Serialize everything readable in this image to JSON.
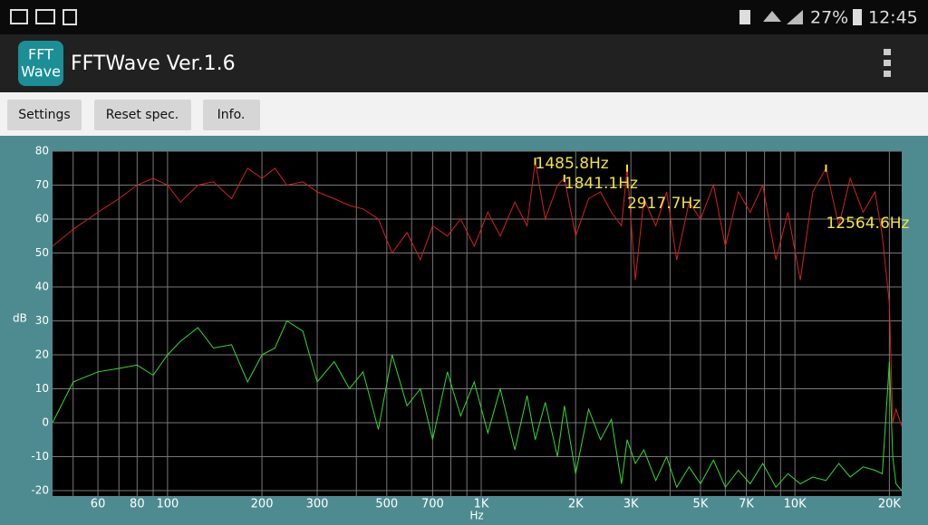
{
  "status_bar": {
    "battery": "27%",
    "time": "12:45"
  },
  "app_bar": {
    "icon_text": [
      "FFT",
      "Wave"
    ],
    "title": "FFTWave Ver.1.6"
  },
  "toolbar": {
    "buttons": [
      "Settings",
      "Reset spec.",
      "Info."
    ]
  },
  "chart_data": {
    "type": "line",
    "log_x": true,
    "grid": true,
    "ylabel": "dB",
    "xlabel": "Hz",
    "xlim": [
      43,
      21900
    ],
    "ylim": [
      -20,
      80
    ],
    "yticks": [
      -20,
      -10,
      0,
      10,
      20,
      30,
      40,
      50,
      60,
      70,
      80
    ],
    "xticks": [
      60,
      80,
      100,
      200,
      300,
      500,
      700,
      {
        "value": 1000,
        "label": "1K"
      },
      {
        "value": 2000,
        "label": "2K"
      },
      {
        "value": 3000,
        "label": "3K"
      },
      {
        "value": 5000,
        "label": "5K"
      },
      {
        "value": 7000,
        "label": "7K"
      },
      {
        "value": 10000,
        "label": "10K"
      },
      {
        "value": 20000,
        "label": "20K"
      }
    ],
    "minor_xticks": [
      50,
      70,
      90,
      400,
      600,
      800,
      900,
      4000,
      6000,
      8000,
      9000
    ],
    "x": [
      43,
      50,
      60,
      70,
      80,
      90,
      100,
      110,
      125,
      140,
      160,
      180,
      200,
      220,
      240,
      270,
      300,
      340,
      380,
      420,
      470,
      520,
      580,
      640,
      700,
      780,
      860,
      950,
      1050,
      1150,
      1280,
      1400,
      1486,
      1600,
      1750,
      1841,
      2000,
      2200,
      2400,
      2600,
      2800,
      2918,
      3100,
      3300,
      3600,
      3900,
      4200,
      4600,
      5000,
      5500,
      6000,
      6600,
      7200,
      7900,
      8700,
      9500,
      10400,
      11400,
      12565,
      13800,
      15000,
      16500,
      18000,
      19000,
      20000,
      20500,
      21000,
      21900
    ],
    "series": [
      {
        "color": "#d42020",
        "values": [
          52,
          57,
          62,
          66,
          70,
          72,
          70,
          65,
          70,
          71,
          66,
          75,
          72,
          75,
          70,
          71,
          68,
          66,
          64,
          63,
          60,
          50,
          56,
          48,
          58,
          55,
          60,
          52,
          62,
          55,
          65,
          58,
          77,
          60,
          70,
          72,
          55,
          66,
          68,
          62,
          58,
          75,
          42,
          66,
          58,
          68,
          48,
          65,
          60,
          70,
          52,
          68,
          62,
          70,
          48,
          62,
          42,
          68,
          75,
          58,
          72,
          62,
          68,
          55,
          35,
          0,
          4,
          -1
        ]
      },
      {
        "color": "#33d933",
        "values": [
          0,
          12,
          15,
          16,
          17,
          14,
          20,
          24,
          28,
          22,
          23,
          12,
          20,
          22,
          30,
          27,
          12,
          18,
          10,
          15,
          -2,
          20,
          5,
          10,
          -5,
          15,
          2,
          12,
          -3,
          10,
          -8,
          8,
          -5,
          6,
          -10,
          5,
          -15,
          4,
          -5,
          1,
          -18,
          -5,
          -12,
          -8,
          -17,
          -10,
          -19,
          -13,
          -18,
          -11,
          -19,
          -14,
          -18,
          -12,
          -19,
          -15,
          -18,
          -16,
          -17,
          -12,
          -16,
          -13,
          -14,
          -15,
          18,
          -10,
          -18,
          -20
        ]
      }
    ],
    "annotations": [
      {
        "text": "1485.8Hz",
        "x": 1485.8,
        "y": 77
      },
      {
        "text": "1841.1Hz",
        "x": 1841.1,
        "y": 72
      },
      {
        "text": "2917.7Hz",
        "x": 2917.7,
        "y": 75
      },
      {
        "text": "12564.6Hz",
        "x": 12564.6,
        "y": 75
      }
    ]
  }
}
